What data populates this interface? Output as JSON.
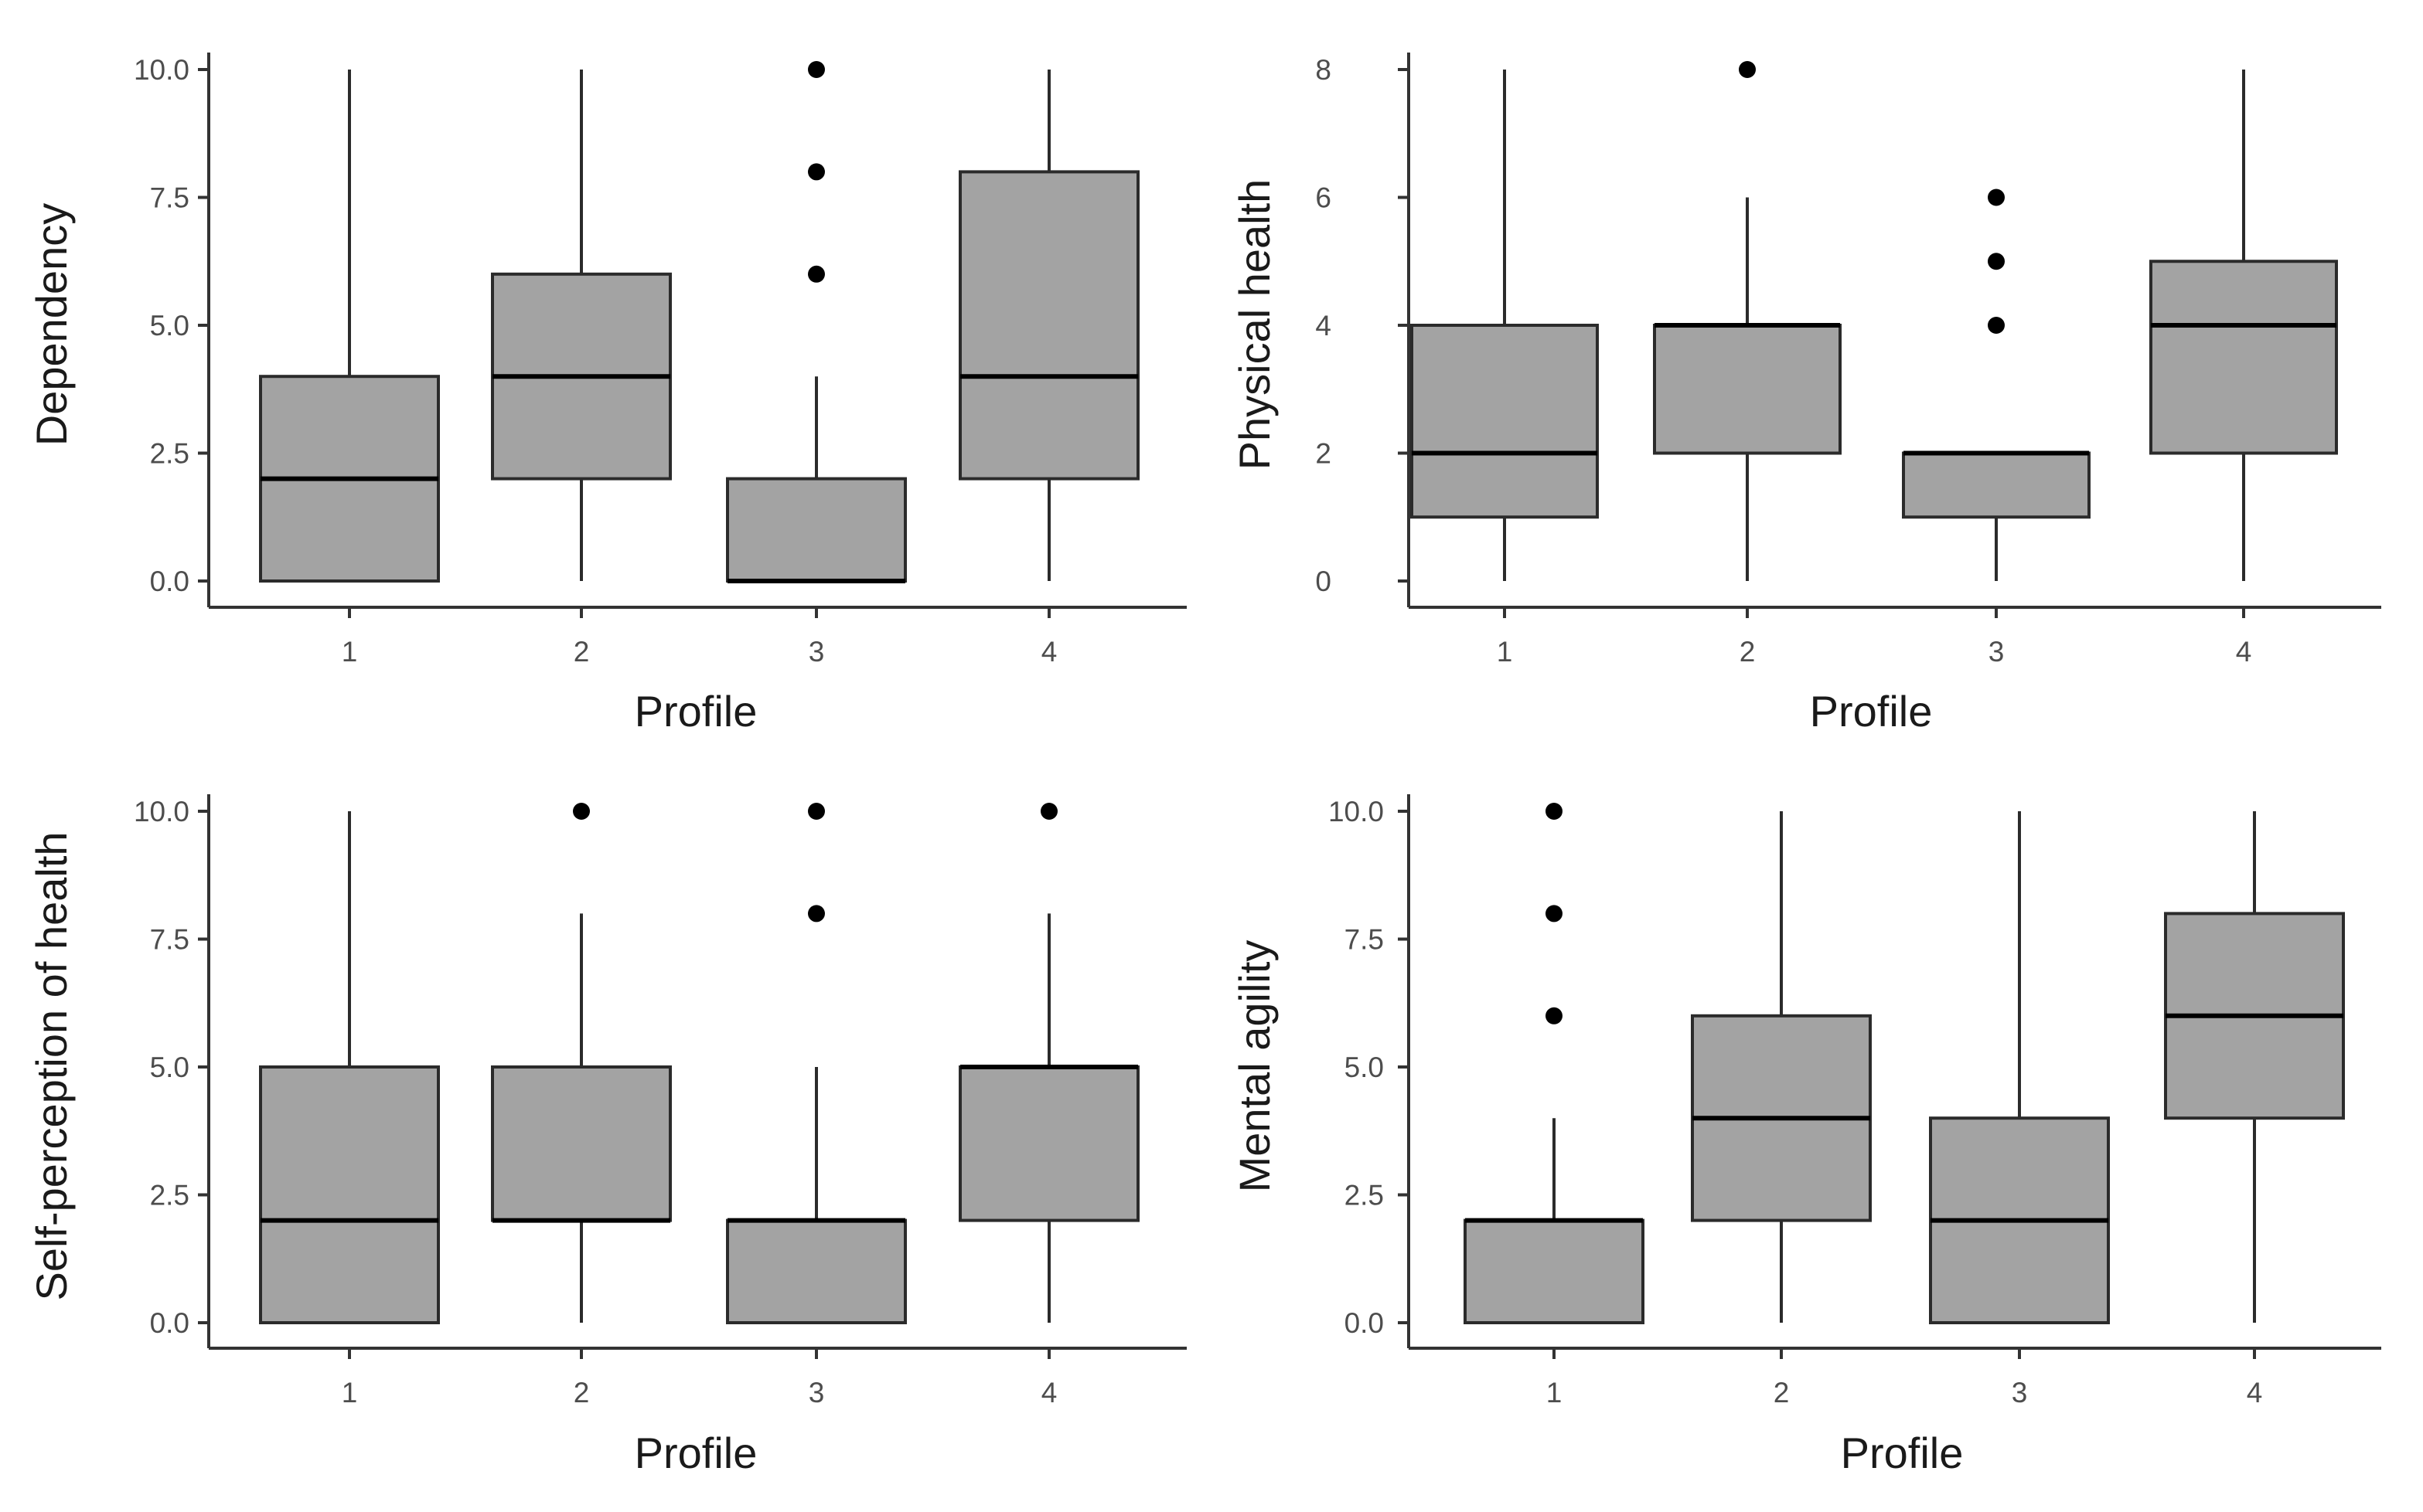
{
  "colors": {
    "box_fill": "#a3a3a3",
    "box_stroke": "#2b2b2b",
    "axis": "#333333",
    "tick_text": "#4d4d4d",
    "title_text": "#1a1a1a",
    "outlier": "#000000"
  },
  "chart_data": [
    {
      "type": "boxplot",
      "xlabel": "Profile",
      "ylabel": "Dependency",
      "categories": [
        "1",
        "2",
        "3",
        "4"
      ],
      "ylim": [
        0,
        10
      ],
      "yticks": [
        "0.0",
        "2.5",
        "5.0",
        "7.5",
        "10.0"
      ],
      "boxes": [
        {
          "profile": "1",
          "min": 0,
          "q1": 0,
          "median": 2,
          "q3": 4,
          "max": 10,
          "outliers": []
        },
        {
          "profile": "2",
          "min": 0,
          "q1": 2,
          "median": 4,
          "q3": 6,
          "max": 10,
          "outliers": []
        },
        {
          "profile": "3",
          "min": 0,
          "q1": 0,
          "median": 0,
          "q3": 2,
          "max": 4,
          "outliers": [
            6,
            8,
            10
          ]
        },
        {
          "profile": "4",
          "min": 0,
          "q1": 2,
          "median": 4,
          "q3": 8,
          "max": 10,
          "outliers": []
        }
      ]
    },
    {
      "type": "boxplot",
      "xlabel": "Profile",
      "ylabel": "Physical health",
      "categories": [
        "1",
        "2",
        "3",
        "4"
      ],
      "ylim": [
        0,
        8
      ],
      "yticks": [
        "0",
        "2",
        "4",
        "6",
        "8"
      ],
      "boxes": [
        {
          "profile": "1",
          "min": 0,
          "q1": 1,
          "median": 2,
          "q3": 4,
          "max": 8,
          "outliers": []
        },
        {
          "profile": "2",
          "min": 0,
          "q1": 2,
          "median": 4,
          "q3": 4,
          "max": 6,
          "outliers": [
            8
          ]
        },
        {
          "profile": "3",
          "min": 0,
          "q1": 1,
          "median": 2,
          "q3": 2,
          "max": 2,
          "outliers": [
            4,
            5,
            6
          ]
        },
        {
          "profile": "4",
          "min": 0,
          "q1": 2,
          "median": 4,
          "q3": 5,
          "max": 8,
          "outliers": []
        }
      ]
    },
    {
      "type": "boxplot",
      "xlabel": "Profile",
      "ylabel": "Self-perception of health",
      "categories": [
        "1",
        "2",
        "3",
        "4"
      ],
      "ylim": [
        0,
        10
      ],
      "yticks": [
        "0.0",
        "2.5",
        "5.0",
        "7.5",
        "10.0"
      ],
      "boxes": [
        {
          "profile": "1",
          "min": 0,
          "q1": 0,
          "median": 2,
          "q3": 5,
          "max": 10,
          "outliers": []
        },
        {
          "profile": "2",
          "min": 0,
          "q1": 2,
          "median": 2,
          "q3": 5,
          "max": 8,
          "outliers": [
            10
          ]
        },
        {
          "profile": "3",
          "min": 0,
          "q1": 0,
          "median": 2,
          "q3": 2,
          "max": 5,
          "outliers": [
            8,
            10
          ]
        },
        {
          "profile": "4",
          "min": 0,
          "q1": 2,
          "median": 5,
          "q3": 5,
          "max": 8,
          "outliers": [
            10
          ]
        }
      ]
    },
    {
      "type": "boxplot",
      "xlabel": "Profile",
      "ylabel": "Mental agility",
      "categories": [
        "1",
        "2",
        "3",
        "4"
      ],
      "ylim": [
        0,
        10
      ],
      "yticks": [
        "0.0",
        "2.5",
        "5.0",
        "7.5",
        "10.0"
      ],
      "boxes": [
        {
          "profile": "1",
          "min": 0,
          "q1": 0,
          "median": 2,
          "q3": 2,
          "max": 4,
          "outliers": [
            6,
            8,
            10
          ]
        },
        {
          "profile": "2",
          "min": 0,
          "q1": 2,
          "median": 4,
          "q3": 6,
          "max": 10,
          "outliers": []
        },
        {
          "profile": "3",
          "min": 0,
          "q1": 0,
          "median": 2,
          "q3": 4,
          "max": 10,
          "outliers": []
        },
        {
          "profile": "4",
          "min": 0,
          "q1": 4,
          "median": 6,
          "q3": 8,
          "max": 10,
          "outliers": []
        }
      ]
    }
  ]
}
